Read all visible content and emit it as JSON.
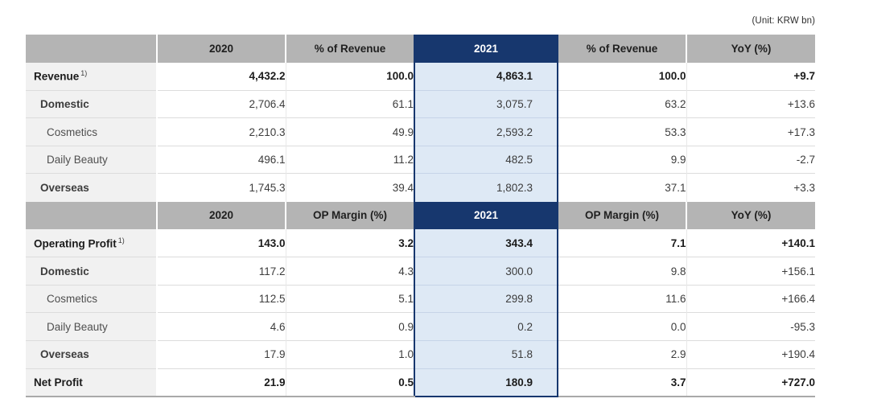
{
  "unit_label": "(Unit: KRW bn)",
  "colors": {
    "accent_navy": "#17376E",
    "highlight_fill": "#DEE9F5",
    "header_gray": "#B4B4B4",
    "label_gray": "#F1F1F1"
  },
  "table": {
    "cell_names": [
      "cell-2020",
      "cell-ratio-2020",
      "cell-2021",
      "cell-ratio-2021",
      "cell-yoy"
    ],
    "sections": [
      {
        "header": [
          "",
          "2020",
          "% of Revenue",
          "2021",
          "% of Revenue",
          "YoY (%)"
        ],
        "rows": [
          {
            "label": "Revenue",
            "sup": "1)",
            "indent": 0,
            "label_bold": true,
            "values_bold": true,
            "values": [
              "4,432.2",
              "100.0",
              "4,863.1",
              "100.0",
              "+9.7"
            ]
          },
          {
            "label": "Domestic",
            "indent": 1,
            "label_bold": true,
            "values_bold": false,
            "values": [
              "2,706.4",
              "61.1",
              "3,075.7",
              "63.2",
              "+13.6"
            ]
          },
          {
            "label": "Cosmetics",
            "indent": 2,
            "label_bold": false,
            "values_bold": false,
            "values": [
              "2,210.3",
              "49.9",
              "2,593.2",
              "53.3",
              "+17.3"
            ]
          },
          {
            "label": "Daily Beauty",
            "indent": 2,
            "label_bold": false,
            "values_bold": false,
            "values": [
              "496.1",
              "11.2",
              "482.5",
              "9.9",
              "-2.7"
            ]
          },
          {
            "label": "Overseas",
            "indent": 1,
            "label_bold": true,
            "values_bold": false,
            "values": [
              "1,745.3",
              "39.4",
              "1,802.3",
              "37.1",
              "+3.3"
            ]
          }
        ]
      },
      {
        "header": [
          "",
          "2020",
          "OP Margin (%)",
          "2021",
          "OP Margin (%)",
          "YoY (%)"
        ],
        "rows": [
          {
            "label": "Operating Profit",
            "sup": "1)",
            "indent": 0,
            "label_bold": true,
            "values_bold": true,
            "values": [
              "143.0",
              "3.2",
              "343.4",
              "7.1",
              "+140.1"
            ]
          },
          {
            "label": "Domestic",
            "indent": 1,
            "label_bold": true,
            "values_bold": false,
            "values": [
              "117.2",
              "4.3",
              "300.0",
              "9.8",
              "+156.1"
            ]
          },
          {
            "label": "Cosmetics",
            "indent": 2,
            "label_bold": false,
            "values_bold": false,
            "values": [
              "112.5",
              "5.1",
              "299.8",
              "11.6",
              "+166.4"
            ]
          },
          {
            "label": "Daily Beauty",
            "indent": 2,
            "label_bold": false,
            "values_bold": false,
            "values": [
              "4.6",
              "0.9",
              "0.2",
              "0.0",
              "-95.3"
            ]
          },
          {
            "label": "Overseas",
            "indent": 1,
            "label_bold": true,
            "values_bold": false,
            "values": [
              "17.9",
              "1.0",
              "51.8",
              "2.9",
              "+190.4"
            ]
          },
          {
            "label": "Net Profit",
            "indent": 0,
            "label_bold": true,
            "values_bold": true,
            "values": [
              "21.9",
              "0.5",
              "180.9",
              "3.7",
              "+727.0"
            ]
          }
        ]
      }
    ]
  }
}
